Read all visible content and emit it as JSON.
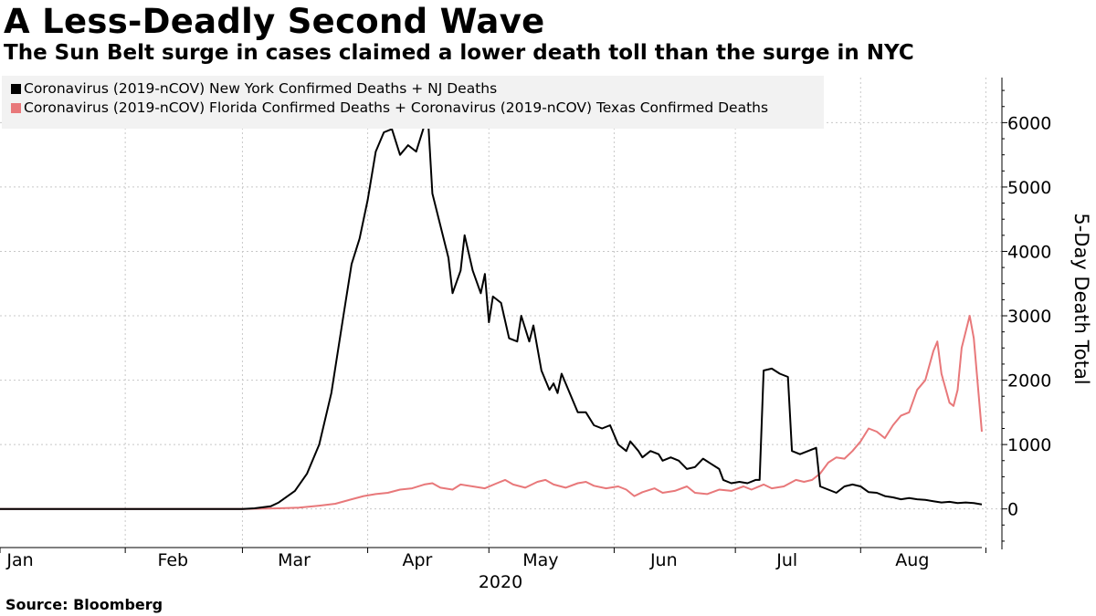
{
  "header": {
    "title": "A Less-Deadly Second Wave",
    "subtitle": "The Sun Belt surge in cases claimed a lower death toll than the surge in NYC"
  },
  "footer": {
    "source": "Source: Bloomberg"
  },
  "colors": {
    "ny_series": "#000000",
    "sunbelt_series": "#e8787a",
    "grid": "#c8c8c8",
    "legend_bg": "#f2f2f2"
  },
  "chart_data": {
    "type": "line",
    "title": "A Less-Deadly Second Wave",
    "subtitle": "The Sun Belt surge in cases claimed a lower death toll than the surge in NYC",
    "xlabel": "2020",
    "ylabel": "5-Day Death Total",
    "x_ticks": [
      "Jan",
      "Feb",
      "Mar",
      "Apr",
      "May",
      "Jun",
      "Jul",
      "Aug"
    ],
    "y_ticks": [
      0,
      1000,
      2000,
      3000,
      4000,
      5000,
      6000
    ],
    "y_tick_labels": [
      "0",
      "1000",
      "2000",
      "3000",
      "4000",
      "5000",
      "6000"
    ],
    "ylim": [
      -600,
      6700
    ],
    "xlim": [
      "2020-01-01",
      "2020-08-31"
    ],
    "grid": true,
    "legend_position": "top-left",
    "series": [
      {
        "name": "Coronavirus (2019-nCOV) New York Confirmed Deaths + NJ Deaths",
        "color": "#000000",
        "points": [
          [
            "2020-01-01",
            0
          ],
          [
            "2020-02-15",
            0
          ],
          [
            "2020-03-01",
            0
          ],
          [
            "2020-03-04",
            10
          ],
          [
            "2020-03-08",
            40
          ],
          [
            "2020-03-10",
            100
          ],
          [
            "2020-03-14",
            280
          ],
          [
            "2020-03-17",
            550
          ],
          [
            "2020-03-20",
            1000
          ],
          [
            "2020-03-23",
            1800
          ],
          [
            "2020-03-26",
            3000
          ],
          [
            "2020-03-28",
            3800
          ],
          [
            "2020-03-30",
            4200
          ],
          [
            "2020-04-01",
            4800
          ],
          [
            "2020-04-03",
            5550
          ],
          [
            "2020-04-05",
            5850
          ],
          [
            "2020-04-07",
            5900
          ],
          [
            "2020-04-09",
            5500
          ],
          [
            "2020-04-11",
            5650
          ],
          [
            "2020-04-13",
            5550
          ],
          [
            "2020-04-15",
            5950
          ],
          [
            "2020-04-16",
            6000
          ],
          [
            "2020-04-17",
            4900
          ],
          [
            "2020-04-19",
            4400
          ],
          [
            "2020-04-21",
            3900
          ],
          [
            "2020-04-22",
            3350
          ],
          [
            "2020-04-24",
            3700
          ],
          [
            "2020-04-25",
            4250
          ],
          [
            "2020-04-27",
            3700
          ],
          [
            "2020-04-29",
            3350
          ],
          [
            "2020-04-30",
            3650
          ],
          [
            "2020-05-01",
            2900
          ],
          [
            "2020-05-02",
            3300
          ],
          [
            "2020-05-04",
            3200
          ],
          [
            "2020-05-06",
            2650
          ],
          [
            "2020-05-08",
            2600
          ],
          [
            "2020-05-09",
            3000
          ],
          [
            "2020-05-11",
            2600
          ],
          [
            "2020-05-12",
            2850
          ],
          [
            "2020-05-14",
            2150
          ],
          [
            "2020-05-16",
            1850
          ],
          [
            "2020-05-17",
            1950
          ],
          [
            "2020-05-18",
            1800
          ],
          [
            "2020-05-19",
            2100
          ],
          [
            "2020-05-21",
            1800
          ],
          [
            "2020-05-23",
            1500
          ],
          [
            "2020-05-25",
            1500
          ],
          [
            "2020-05-27",
            1300
          ],
          [
            "2020-05-29",
            1250
          ],
          [
            "2020-05-31",
            1300
          ],
          [
            "2020-06-02",
            1000
          ],
          [
            "2020-06-04",
            900
          ],
          [
            "2020-06-05",
            1050
          ],
          [
            "2020-06-07",
            900
          ],
          [
            "2020-06-08",
            800
          ],
          [
            "2020-06-10",
            900
          ],
          [
            "2020-06-12",
            850
          ],
          [
            "2020-06-13",
            750
          ],
          [
            "2020-06-15",
            800
          ],
          [
            "2020-06-17",
            750
          ],
          [
            "2020-06-19",
            620
          ],
          [
            "2020-06-21",
            650
          ],
          [
            "2020-06-23",
            780
          ],
          [
            "2020-06-25",
            700
          ],
          [
            "2020-06-27",
            620
          ],
          [
            "2020-06-28",
            450
          ],
          [
            "2020-06-30",
            400
          ],
          [
            "2020-07-02",
            420
          ],
          [
            "2020-07-04",
            400
          ],
          [
            "2020-07-06",
            450
          ],
          [
            "2020-07-07",
            450
          ],
          [
            "2020-07-08",
            2150
          ],
          [
            "2020-07-10",
            2180
          ],
          [
            "2020-07-12",
            2100
          ],
          [
            "2020-07-14",
            2050
          ],
          [
            "2020-07-15",
            900
          ],
          [
            "2020-07-17",
            850
          ],
          [
            "2020-07-19",
            900
          ],
          [
            "2020-07-21",
            950
          ],
          [
            "2020-07-22",
            350
          ],
          [
            "2020-07-24",
            300
          ],
          [
            "2020-07-26",
            250
          ],
          [
            "2020-07-28",
            350
          ],
          [
            "2020-07-30",
            380
          ],
          [
            "2020-08-01",
            350
          ],
          [
            "2020-08-03",
            260
          ],
          [
            "2020-08-05",
            250
          ],
          [
            "2020-08-07",
            200
          ],
          [
            "2020-08-09",
            180
          ],
          [
            "2020-08-11",
            150
          ],
          [
            "2020-08-13",
            170
          ],
          [
            "2020-08-15",
            150
          ],
          [
            "2020-08-17",
            140
          ],
          [
            "2020-08-19",
            120
          ],
          [
            "2020-08-21",
            100
          ],
          [
            "2020-08-23",
            110
          ],
          [
            "2020-08-25",
            90
          ],
          [
            "2020-08-27",
            100
          ],
          [
            "2020-08-29",
            90
          ],
          [
            "2020-08-31",
            70
          ]
        ]
      },
      {
        "name": "Coronavirus (2019-nCOV) Florida Confirmed Deaths + Coronavirus (2019-nCOV) Texas Confirmed Deaths",
        "color": "#e8787a",
        "points": [
          [
            "2020-01-01",
            0
          ],
          [
            "2020-02-15",
            0
          ],
          [
            "2020-03-01",
            0
          ],
          [
            "2020-03-10",
            10
          ],
          [
            "2020-03-15",
            20
          ],
          [
            "2020-03-20",
            50
          ],
          [
            "2020-03-24",
            80
          ],
          [
            "2020-03-28",
            150
          ],
          [
            "2020-03-31",
            200
          ],
          [
            "2020-04-03",
            230
          ],
          [
            "2020-04-06",
            250
          ],
          [
            "2020-04-09",
            300
          ],
          [
            "2020-04-12",
            320
          ],
          [
            "2020-04-15",
            380
          ],
          [
            "2020-04-17",
            400
          ],
          [
            "2020-04-19",
            330
          ],
          [
            "2020-04-22",
            300
          ],
          [
            "2020-04-24",
            380
          ],
          [
            "2020-04-27",
            350
          ],
          [
            "2020-04-30",
            320
          ],
          [
            "2020-05-03",
            400
          ],
          [
            "2020-05-05",
            450
          ],
          [
            "2020-05-07",
            380
          ],
          [
            "2020-05-10",
            330
          ],
          [
            "2020-05-13",
            420
          ],
          [
            "2020-05-15",
            450
          ],
          [
            "2020-05-17",
            380
          ],
          [
            "2020-05-20",
            330
          ],
          [
            "2020-05-23",
            400
          ],
          [
            "2020-05-25",
            420
          ],
          [
            "2020-05-27",
            360
          ],
          [
            "2020-05-30",
            320
          ],
          [
            "2020-06-02",
            350
          ],
          [
            "2020-06-04",
            300
          ],
          [
            "2020-06-06",
            200
          ],
          [
            "2020-06-08",
            260
          ],
          [
            "2020-06-11",
            320
          ],
          [
            "2020-06-13",
            250
          ],
          [
            "2020-06-16",
            280
          ],
          [
            "2020-06-19",
            350
          ],
          [
            "2020-06-21",
            250
          ],
          [
            "2020-06-24",
            230
          ],
          [
            "2020-06-27",
            300
          ],
          [
            "2020-06-30",
            280
          ],
          [
            "2020-07-03",
            350
          ],
          [
            "2020-07-05",
            300
          ],
          [
            "2020-07-08",
            380
          ],
          [
            "2020-07-10",
            320
          ],
          [
            "2020-07-13",
            350
          ],
          [
            "2020-07-16",
            450
          ],
          [
            "2020-07-18",
            420
          ],
          [
            "2020-07-20",
            450
          ],
          [
            "2020-07-22",
            550
          ],
          [
            "2020-07-24",
            720
          ],
          [
            "2020-07-26",
            800
          ],
          [
            "2020-07-28",
            780
          ],
          [
            "2020-07-30",
            900
          ],
          [
            "2020-08-01",
            1050
          ],
          [
            "2020-08-03",
            1250
          ],
          [
            "2020-08-05",
            1200
          ],
          [
            "2020-08-07",
            1100
          ],
          [
            "2020-08-09",
            1300
          ],
          [
            "2020-08-11",
            1450
          ],
          [
            "2020-08-13",
            1500
          ],
          [
            "2020-08-15",
            1850
          ],
          [
            "2020-08-17",
            2000
          ],
          [
            "2020-08-19",
            2450
          ],
          [
            "2020-08-20",
            2600
          ],
          [
            "2020-08-21",
            2100
          ],
          [
            "2020-08-23",
            1650
          ],
          [
            "2020-08-24",
            1600
          ],
          [
            "2020-08-25",
            1850
          ],
          [
            "2020-08-26",
            2500
          ],
          [
            "2020-08-28",
            3000
          ],
          [
            "2020-08-29",
            2650
          ],
          [
            "2020-08-31",
            1200
          ]
        ]
      }
    ]
  }
}
